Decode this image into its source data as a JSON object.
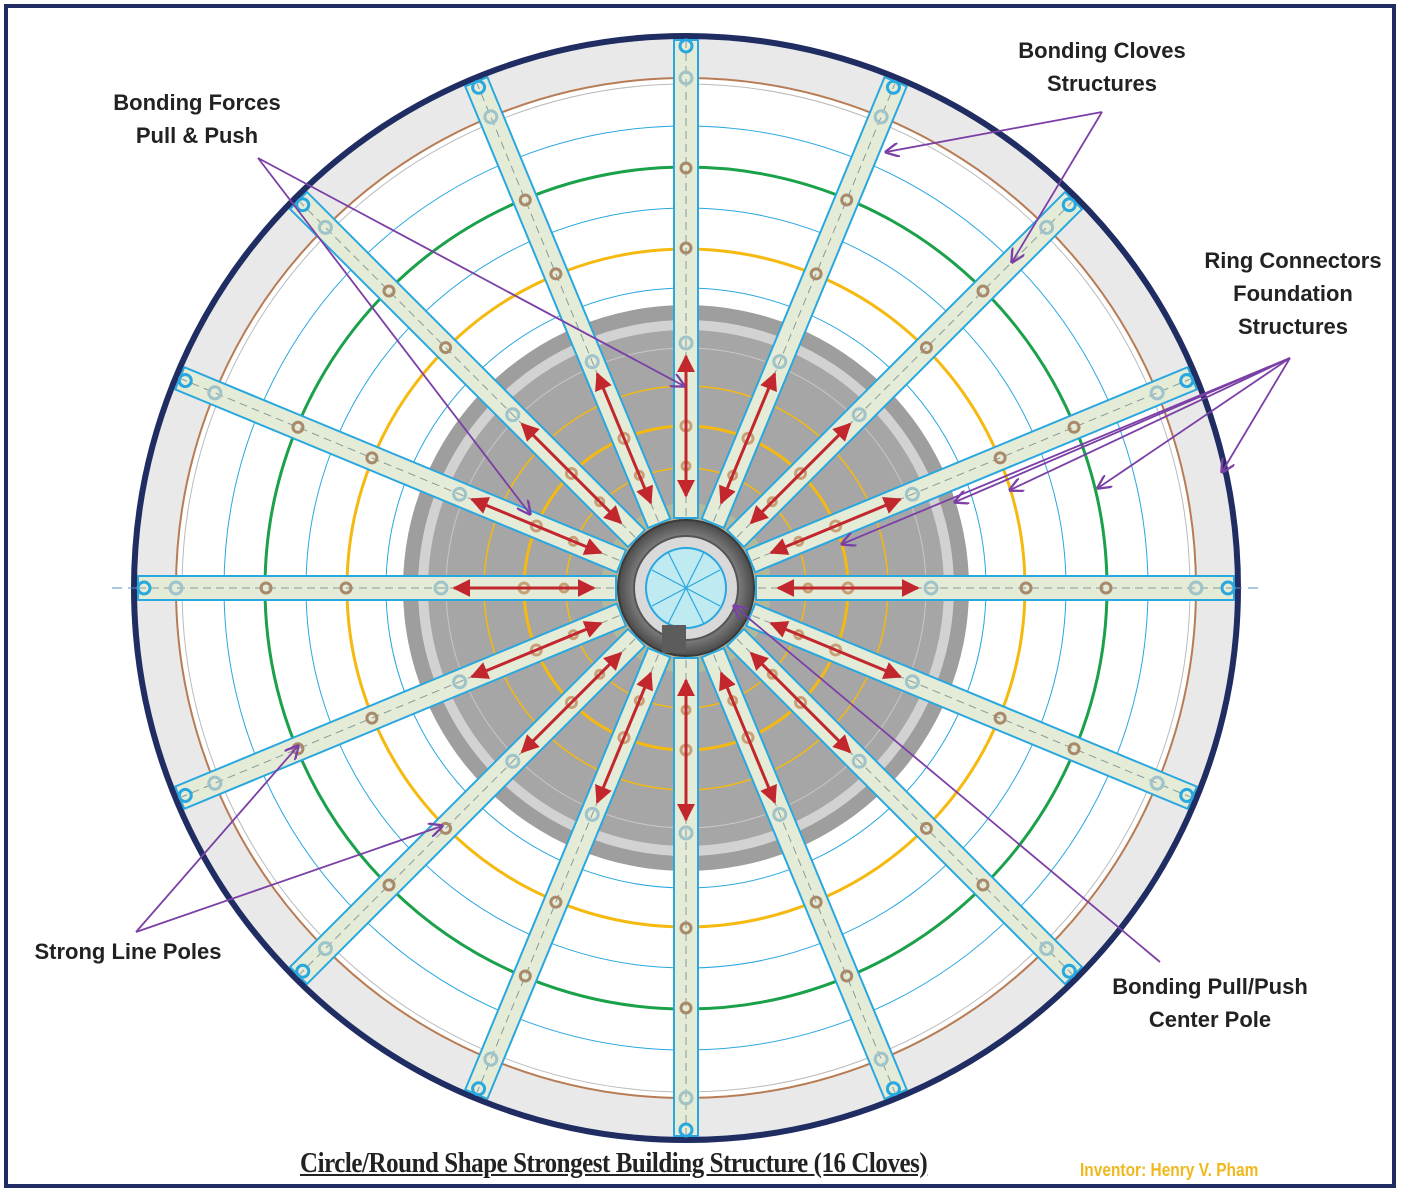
{
  "labels": {
    "bonding_forces": [
      "Bonding Forces",
      "Pull & Push"
    ],
    "bonding_cloves": [
      "Bonding Cloves",
      "Structures"
    ],
    "ring_connectors": [
      "Ring Connectors",
      "Foundation",
      "Structures"
    ],
    "strong_line_poles": "Strong Line Poles",
    "center_pole": [
      "Bonding Pull/Push",
      "Center Pole"
    ]
  },
  "title": "Circle/Round Shape Strongest Building Structure (16 Cloves)",
  "inventor": "Inventor: Henry V. Pham",
  "structure": {
    "clove_count": 16,
    "ring_colors": {
      "outer_border": "#1f2d63",
      "green_ring": "#1aa14a",
      "yellow_ring": "#f5b90f",
      "thin_ring": "#29a7df",
      "copper_ring": "#b87c55",
      "pole_outline": "#29a7df",
      "pole_fill": "#e4ecd8",
      "force_arrow": "#c1272d",
      "pointer_line": "#7b3fa6",
      "core_gray": "#a3a3a3"
    }
  }
}
